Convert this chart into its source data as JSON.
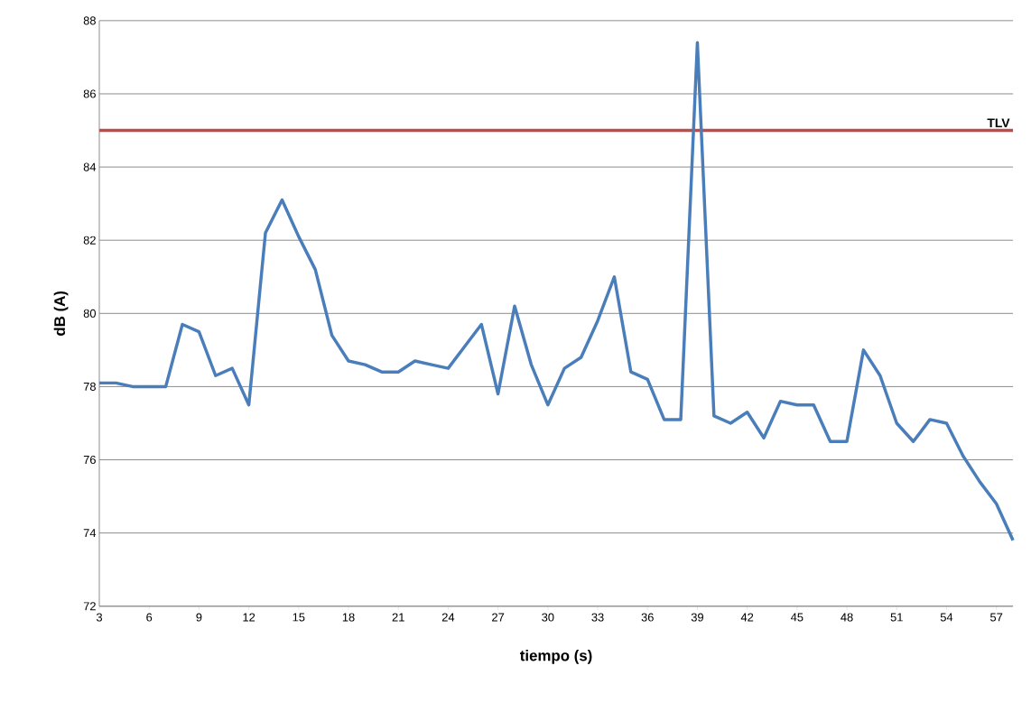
{
  "chart_data": {
    "type": "line",
    "xlabel": "tiempo (s)",
    "ylabel": "dB (A)",
    "x": [
      3,
      4,
      5,
      6,
      7,
      8,
      9,
      10,
      11,
      12,
      13,
      14,
      15,
      16,
      17,
      18,
      19,
      20,
      21,
      22,
      23,
      24,
      25,
      26,
      27,
      28,
      29,
      30,
      31,
      32,
      33,
      34,
      35,
      36,
      37,
      38,
      39,
      40,
      41,
      42,
      43,
      44,
      45,
      46,
      47,
      48,
      49,
      50,
      51,
      52,
      53,
      54,
      55,
      56,
      57,
      58
    ],
    "series": [
      {
        "color": "#4a7ebb",
        "values": [
          78.1,
          78.1,
          78.0,
          78.0,
          78.0,
          79.7,
          79.5,
          78.3,
          78.5,
          77.5,
          82.2,
          83.1,
          82.1,
          81.2,
          79.4,
          78.7,
          78.6,
          78.4,
          78.4,
          78.7,
          78.6,
          78.5,
          79.1,
          79.7,
          77.8,
          80.2,
          78.6,
          77.5,
          78.5,
          78.8,
          79.8,
          81.0,
          78.4,
          78.2,
          77.1,
          77.1,
          87.4,
          77.2,
          77.0,
          77.3,
          76.6,
          77.6,
          77.5,
          77.5,
          76.5,
          76.5,
          79.0,
          78.3,
          77.0,
          76.5,
          77.1,
          77.0,
          76.1,
          75.4,
          74.8,
          73.8
        ]
      }
    ],
    "xlim": [
      3,
      58
    ],
    "ylim": [
      72,
      88
    ],
    "xticks": [
      3,
      6,
      9,
      12,
      15,
      18,
      21,
      24,
      27,
      30,
      33,
      36,
      39,
      42,
      45,
      48,
      51,
      54,
      57
    ],
    "yticks": [
      72,
      74,
      76,
      78,
      80,
      82,
      84,
      86,
      88
    ],
    "grid": "y",
    "marker": "none",
    "line_style": "solid",
    "ref_lines": [
      {
        "axis": "y",
        "value": 85,
        "label": "TLV",
        "color": "#be4b48"
      }
    ]
  }
}
